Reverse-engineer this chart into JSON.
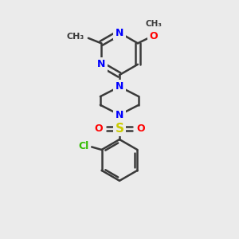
{
  "bg_color": "#ebebeb",
  "bond_color": "#3a3a3a",
  "bond_width": 1.8,
  "N_color": "#0000FF",
  "O_color": "#FF0000",
  "S_color": "#cccc00",
  "Cl_color": "#33bb00",
  "font_size": 9,
  "figsize": [
    3.0,
    3.0
  ],
  "dpi": 100,
  "xlim": [
    0,
    10
  ],
  "ylim": [
    0,
    10
  ]
}
